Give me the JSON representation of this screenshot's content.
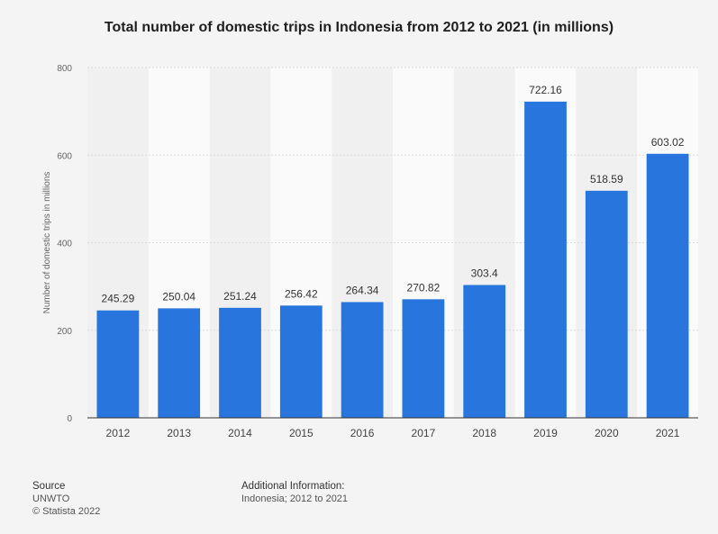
{
  "chart_data": {
    "type": "bar",
    "title": "Total number of domestic trips in Indonesia from 2012 to 2021 (in millions)",
    "xlabel": "",
    "ylabel": "Number of domestic trips in millions",
    "categories": [
      "2012",
      "2013",
      "2014",
      "2015",
      "2016",
      "2017",
      "2018",
      "2019",
      "2020",
      "2021"
    ],
    "values": [
      245.29,
      250.04,
      251.24,
      256.42,
      264.34,
      270.82,
      303.4,
      722.16,
      518.59,
      603.02
    ],
    "value_labels": [
      "245.29",
      "250.04",
      "251.24",
      "256.42",
      "264.34",
      "270.82",
      "303.4",
      "722.16",
      "518.59",
      "603.02"
    ],
    "ylim": [
      0,
      800
    ],
    "yticks": [
      0,
      200,
      400,
      600,
      800
    ],
    "grid": true,
    "bar_color": "#2876dd"
  },
  "footer": {
    "source_heading": "Source",
    "source_name": "UNWTO",
    "copyright": "© Statista 2022",
    "info_heading": "Additional Information:",
    "info_text": "Indonesia; 2012 to 2021"
  }
}
